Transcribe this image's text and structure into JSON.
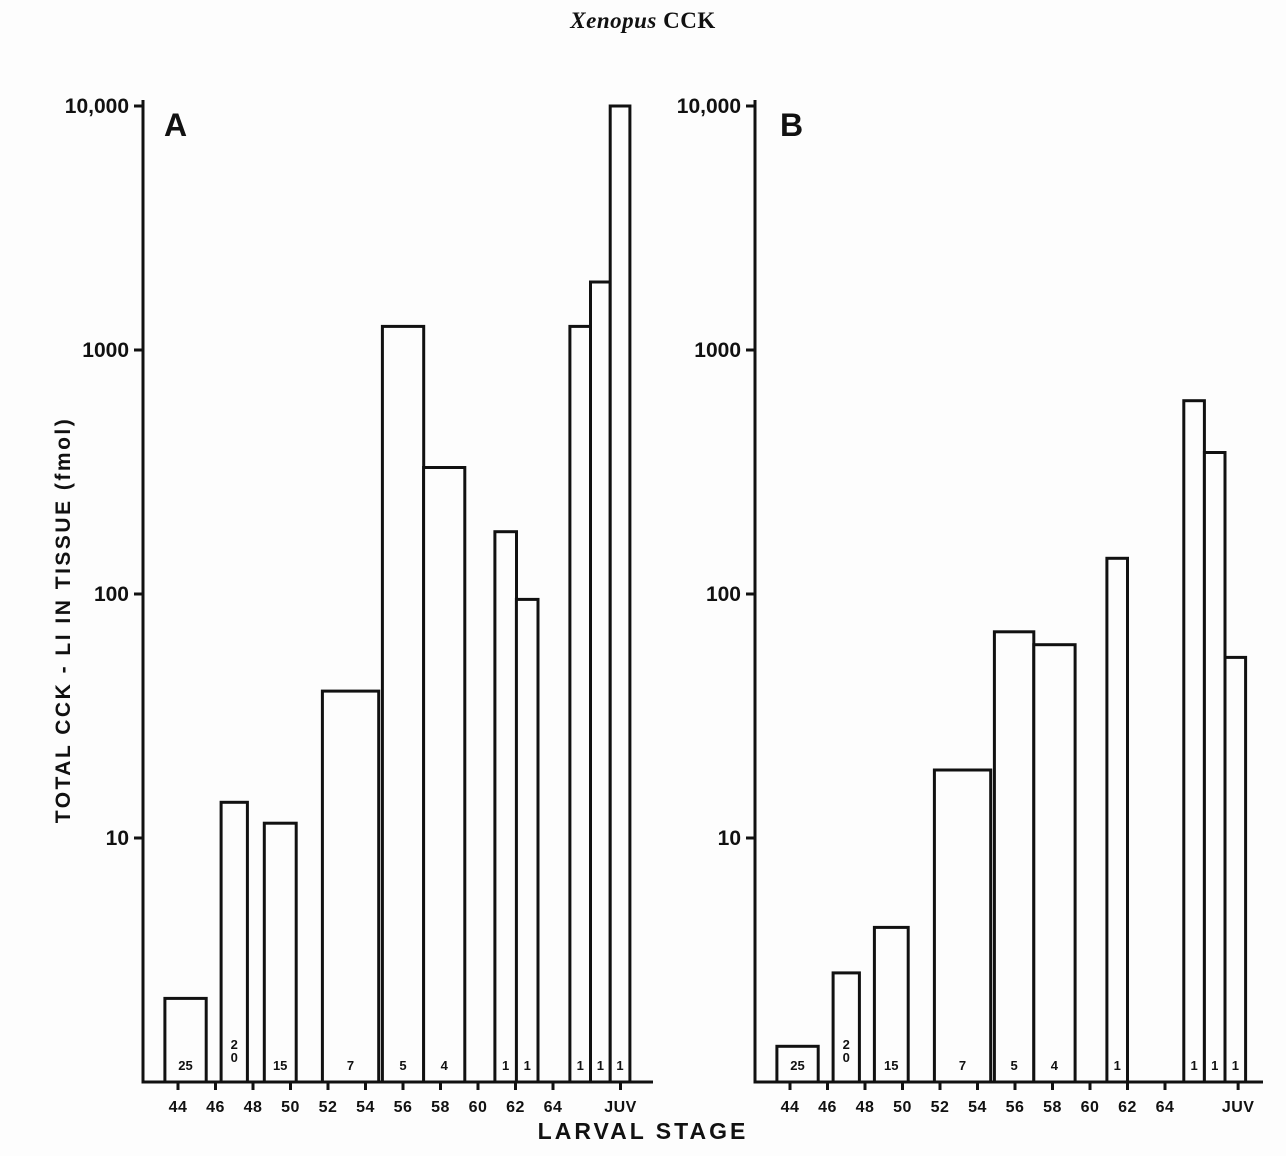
{
  "page": {
    "title_italic": "Xenopus",
    "title_rest": " CCK",
    "y_axis_title": "TOTAL CCK - LI IN TISSUE (fmol)",
    "x_axis_title": "LARVAL STAGE"
  },
  "chart_data": [
    {
      "type": "bar",
      "panel": "A",
      "title": "Xenopus CCK",
      "ylabel": "TOTAL CCK - LI IN TISSUE (fmol)",
      "xlabel": "LARVAL STAGE",
      "yscale": "log",
      "ylim": [
        1,
        10000
      ],
      "yticks": [
        {
          "label": "10,000",
          "value": 10000
        },
        {
          "label": "1000",
          "value": 1000
        },
        {
          "label": "100",
          "value": 100
        },
        {
          "label": "10",
          "value": 10
        }
      ],
      "xticks": [
        {
          "label": "44",
          "stage": 44
        },
        {
          "label": "46",
          "stage": 46
        },
        {
          "label": "48",
          "stage": 48
        },
        {
          "label": "50",
          "stage": 50
        },
        {
          "label": "52",
          "stage": 52
        },
        {
          "label": "54",
          "stage": 54
        },
        {
          "label": "56",
          "stage": 56
        },
        {
          "label": "58",
          "stage": 58
        },
        {
          "label": "60",
          "stage": 60
        },
        {
          "label": "62",
          "stage": 62
        },
        {
          "label": "64",
          "stage": 64
        },
        {
          "label": "JUV",
          "stage": 67.6
        }
      ],
      "bars": [
        {
          "from": 43.3,
          "to": 45.5,
          "value": 2.2,
          "n": "25"
        },
        {
          "from": 46.3,
          "to": 47.7,
          "value": 14,
          "n": "20"
        },
        {
          "from": 48.6,
          "to": 50.3,
          "value": 11.5,
          "n": "15"
        },
        {
          "from": 51.7,
          "to": 54.7,
          "value": 40,
          "n": "7"
        },
        {
          "from": 54.9,
          "to": 57.1,
          "value": 1250,
          "n": "5"
        },
        {
          "from": 57.1,
          "to": 59.3,
          "value": 330,
          "n": "4"
        },
        {
          "from": 60.9,
          "to": 62.05,
          "value": 180,
          "n": "1"
        },
        {
          "from": 62.05,
          "to": 63.2,
          "value": 95,
          "n": "1"
        },
        {
          "from": 64.9,
          "to": 66.0,
          "value": 1250,
          "n": "1"
        },
        {
          "from": 66.0,
          "to": 67.05,
          "value": 1900,
          "n": "1"
        },
        {
          "from": 67.05,
          "to": 68.1,
          "value": 10000,
          "n": "1"
        }
      ]
    },
    {
      "type": "bar",
      "panel": "B",
      "title": "Xenopus CCK",
      "ylabel": "TOTAL CCK - LI IN TISSUE (fmol)",
      "xlabel": "LARVAL STAGE",
      "yscale": "log",
      "ylim": [
        1,
        10000
      ],
      "yticks": [
        {
          "label": "10,000",
          "value": 10000
        },
        {
          "label": "1000",
          "value": 1000
        },
        {
          "label": "100",
          "value": 100
        },
        {
          "label": "10",
          "value": 10
        }
      ],
      "xticks": [
        {
          "label": "44",
          "stage": 44
        },
        {
          "label": "46",
          "stage": 46
        },
        {
          "label": "48",
          "stage": 48
        },
        {
          "label": "50",
          "stage": 50
        },
        {
          "label": "52",
          "stage": 52
        },
        {
          "label": "54",
          "stage": 54
        },
        {
          "label": "56",
          "stage": 56
        },
        {
          "label": "58",
          "stage": 58
        },
        {
          "label": "60",
          "stage": 60
        },
        {
          "label": "62",
          "stage": 62
        },
        {
          "label": "64",
          "stage": 64
        },
        {
          "label": "JUV",
          "stage": 67.9
        }
      ],
      "bars": [
        {
          "from": 43.3,
          "to": 45.5,
          "value": 1.4,
          "n": "25"
        },
        {
          "from": 46.3,
          "to": 47.7,
          "value": 2.8,
          "n": "20"
        },
        {
          "from": 48.5,
          "to": 50.3,
          "value": 4.3,
          "n": "15"
        },
        {
          "from": 51.7,
          "to": 54.7,
          "value": 19,
          "n": "7"
        },
        {
          "from": 54.9,
          "to": 57.0,
          "value": 70,
          "n": "5"
        },
        {
          "from": 57.0,
          "to": 59.2,
          "value": 62,
          "n": "4"
        },
        {
          "from": 60.9,
          "to": 62.0,
          "value": 140,
          "n": "1"
        },
        {
          "from": 65.0,
          "to": 66.1,
          "value": 620,
          "n": "1"
        },
        {
          "from": 66.1,
          "to": 67.2,
          "value": 380,
          "n": "1"
        },
        {
          "from": 67.2,
          "to": 68.3,
          "value": 55,
          "n": "1"
        }
      ]
    }
  ]
}
